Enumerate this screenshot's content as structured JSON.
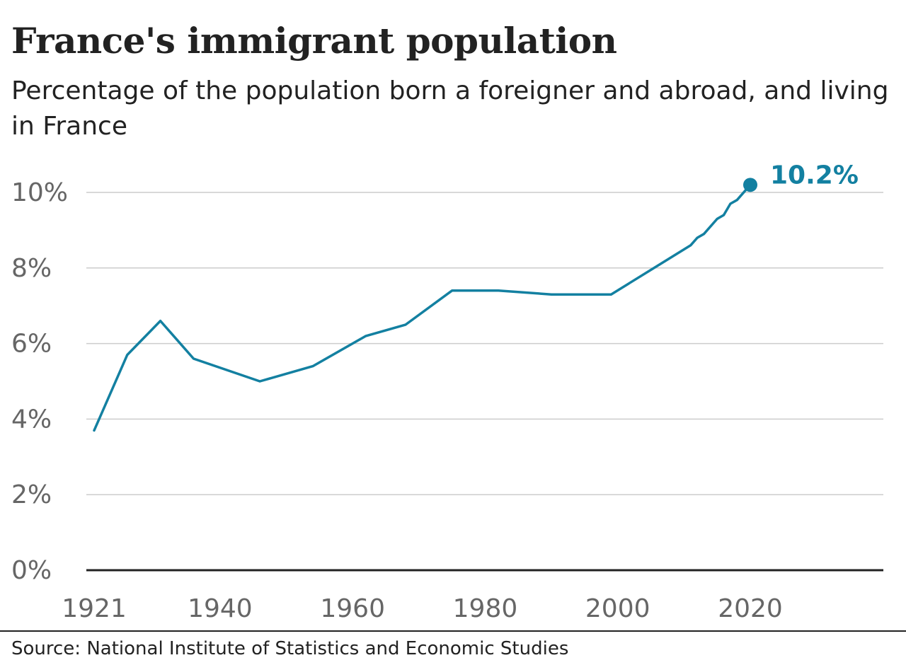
{
  "title": "France's immigrant population",
  "subtitle": "Percentage of the population born a foreigner and abroad, and living in France",
  "source": "Source: National Institute of Statistics and Economic Studies",
  "colors": {
    "line": "#1380a1",
    "grid": "#cccccc",
    "baseline": "#222222",
    "tick_text": "#666666",
    "text": "#222222"
  },
  "chart_data": {
    "type": "line",
    "title": "France's immigrant population",
    "subtitle": "Percentage of the population born a foreigner and abroad, and living in France",
    "xlabel": "",
    "ylabel": "",
    "xlim": [
      1921,
      2042
    ],
    "ylim": [
      0,
      10
    ],
    "x_ticks": [
      1921,
      1940,
      1960,
      1980,
      2000,
      2020
    ],
    "x_tick_labels": [
      "1921",
      "1940",
      "1960",
      "1980",
      "2000",
      "2020"
    ],
    "y_ticks": [
      0,
      2,
      4,
      6,
      8,
      10
    ],
    "y_tick_labels": [
      "0%",
      "2%",
      "4%",
      "6%",
      "8%",
      "10%"
    ],
    "grid": true,
    "legend": "none",
    "series": [
      {
        "x": [
          1921,
          1926,
          1931,
          1936,
          1946,
          1954,
          1962,
          1968,
          1975,
          1982,
          1990,
          1999,
          2011,
          2012,
          2013,
          2015,
          2016,
          2017,
          2018,
          2020
        ],
        "y": [
          3.7,
          5.7,
          6.6,
          5.6,
          5.0,
          5.4,
          6.2,
          6.5,
          7.4,
          7.4,
          7.3,
          7.3,
          8.6,
          8.8,
          8.9,
          9.3,
          9.4,
          9.7,
          9.8,
          10.2
        ]
      }
    ],
    "annotations": [
      {
        "x": 2020,
        "y": 10.2,
        "text": "10.2%"
      }
    ]
  }
}
